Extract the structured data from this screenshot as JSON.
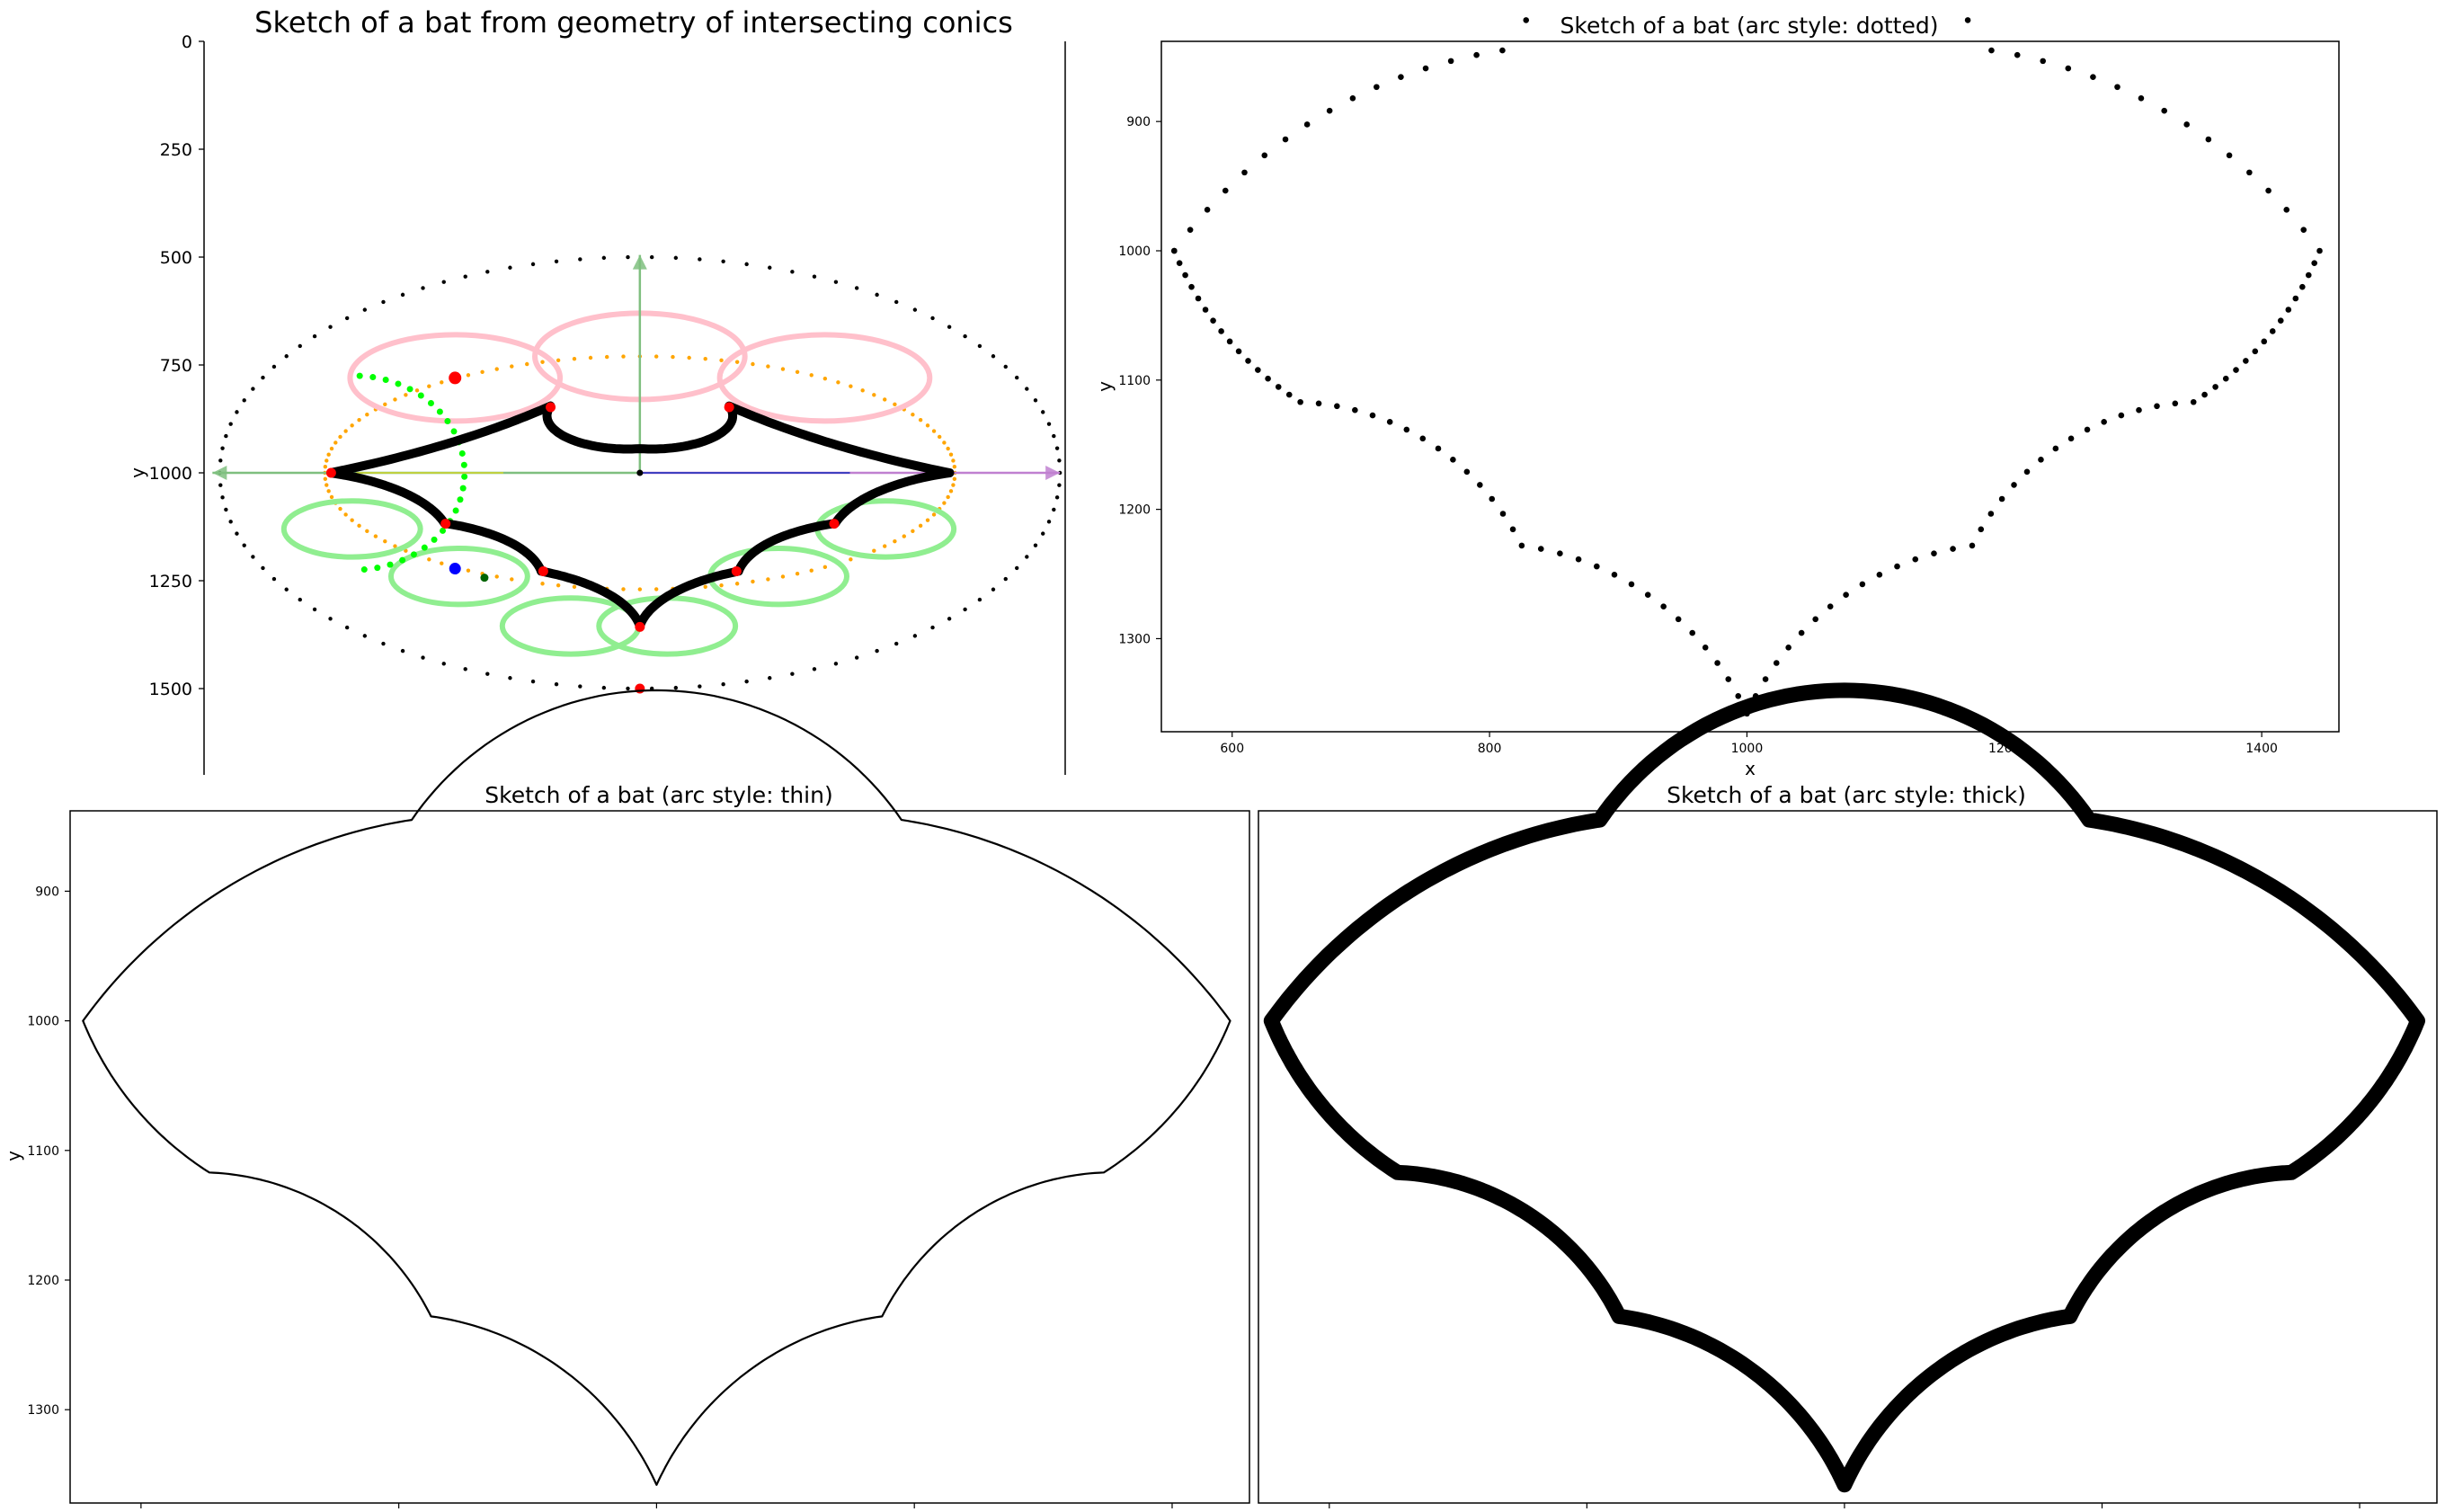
{
  "figure": {
    "background": "#ffffff"
  },
  "chart_data": [
    {
      "id": "construction",
      "type": "scatter",
      "title": "Sketch of a bat from geometry of intersecting conics",
      "xlabel": "",
      "ylabel": "y",
      "ylim": [
        1700,
        0
      ],
      "yticks": [
        0,
        250,
        500,
        750,
        1000,
        1250,
        1500
      ],
      "xlim": [
        185,
        1005
      ],
      "colors": {
        "outer_ellipse": "#000000",
        "inner_ellipse": "#ffa500",
        "wing_circles": "#ffc0cb",
        "body_circles": "#90ee90",
        "bat_curve": "#000000",
        "cusps": "#ff0000",
        "helper_dots": "#00ff00",
        "axis_up": "#7fbf7f",
        "axis_left": "#7fbf7f",
        "axis_right": "#c080d0",
        "axis_mid": "#4040c0",
        "blue_point": "#0000ff",
        "dark_green_point": "#006400"
      },
      "center": [
        600,
        1000
      ],
      "outer_ellipse": {
        "cx": 600,
        "cy": 1000,
        "rx": 400,
        "ry": 500
      },
      "inner_ellipse": {
        "cx": 600,
        "cy": 1000,
        "rx": 300,
        "ry": 270
      },
      "wing_circles": [
        {
          "cx": 424,
          "cy": 780,
          "r": 100
        },
        {
          "cx": 600,
          "cy": 730,
          "r": 100
        },
        {
          "cx": 776,
          "cy": 780,
          "r": 100
        }
      ],
      "body_circles": [
        {
          "cx": 326,
          "cy": 1130,
          "r": 65
        },
        {
          "cx": 834,
          "cy": 1130,
          "r": 65
        },
        {
          "cx": 428,
          "cy": 1240,
          "r": 65
        },
        {
          "cx": 732,
          "cy": 1240,
          "r": 65
        },
        {
          "cx": 534,
          "cy": 1355,
          "r": 65
        },
        {
          "cx": 626,
          "cy": 1355,
          "r": 65
        }
      ],
      "bat_points": [
        [
          305,
          1000
        ],
        [
          414,
          1117
        ],
        [
          506,
          1228
        ],
        [
          600,
          1355
        ],
        [
          694,
          1228
        ],
        [
          786,
          1117
        ],
        [
          895,
          1000
        ],
        [
          685,
          845
        ],
        [
          600,
          944
        ],
        [
          515,
          845
        ]
      ],
      "cusps": [
        [
          415,
          1118
        ],
        [
          508,
          1228
        ],
        [
          600,
          1357
        ],
        [
          692,
          1228
        ],
        [
          785,
          1118
        ],
        [
          515,
          848
        ],
        [
          685,
          848
        ],
        [
          306,
          1000
        ],
        [
          600,
          1500
        ],
        [
          424,
          780
        ]
      ],
      "helper_arc": {
        "cx": 328,
        "cy": 1000,
        "rx": 105,
        "ry": 225
      },
      "blue_point": [
        424,
        1222
      ],
      "dark_green_point": [
        452,
        1243
      ],
      "axis_arrows": [
        {
          "from": [
            600,
            1000
          ],
          "to": [
            600,
            495
          ],
          "color": "axis_up"
        },
        {
          "from": [
            600,
            1000
          ],
          "to": [
            193,
            1000
          ],
          "color": "axis_left"
        },
        {
          "from": [
            600,
            1000
          ],
          "to": [
            1000,
            1000
          ],
          "color": "axis_right"
        }
      ]
    },
    {
      "id": "dotted",
      "type": "scatter",
      "title": "Sketch of a bat (arc style: dotted)",
      "xlabel": "x",
      "ylabel": "y",
      "xlim": [
        545,
        1460
      ],
      "ylim": [
        1372,
        838
      ],
      "xticks": [
        600,
        800,
        1000,
        1200,
        1400
      ],
      "yticks": [
        900,
        1000,
        1100,
        1200,
        1300
      ],
      "style": "dotted"
    },
    {
      "id": "thin",
      "type": "line",
      "title": "Sketch of a bat (arc style: thin)",
      "xlabel": "",
      "ylabel": "y",
      "xlim": [
        545,
        1460
      ],
      "ylim": [
        1372,
        838
      ],
      "xticks": [
        600,
        800,
        1000,
        1200,
        1400
      ],
      "yticks": [
        900,
        1000,
        1100,
        1200,
        1300
      ],
      "style": "thin"
    },
    {
      "id": "thick",
      "type": "line",
      "title": "Sketch of a bat (arc style: thick)",
      "xlabel": "",
      "ylabel": "",
      "xlim": [
        545,
        1460
      ],
      "ylim": [
        1372,
        838
      ],
      "xticks": [
        600,
        800,
        1000,
        1200,
        1400
      ],
      "yticks": [],
      "style": "thick"
    }
  ],
  "bat_outline": {
    "vertices": [
      [
        555,
        1000
      ],
      [
        653,
        1117
      ],
      [
        825,
        1228
      ],
      [
        1000,
        1358
      ],
      [
        1175,
        1228
      ],
      [
        1347,
        1117
      ],
      [
        1445,
        1000
      ],
      [
        1190,
        845
      ],
      [
        810,
        845
      ]
    ],
    "arcs": [
      {
        "from": 0,
        "to": 1,
        "sag": 12
      },
      {
        "from": 1,
        "to": 2,
        "sag": -28
      },
      {
        "from": 2,
        "to": 3,
        "sag": -28
      },
      {
        "from": 3,
        "to": 4,
        "sag": -28
      },
      {
        "from": 4,
        "to": 5,
        "sag": -28
      },
      {
        "from": 5,
        "to": 6,
        "sag": 12
      },
      {
        "from": 6,
        "to": 7,
        "sag": 30
      },
      {
        "from": 7,
        "to": 8,
        "sag": 100
      },
      {
        "from": 8,
        "to": 0,
        "sag": 30
      }
    ]
  }
}
